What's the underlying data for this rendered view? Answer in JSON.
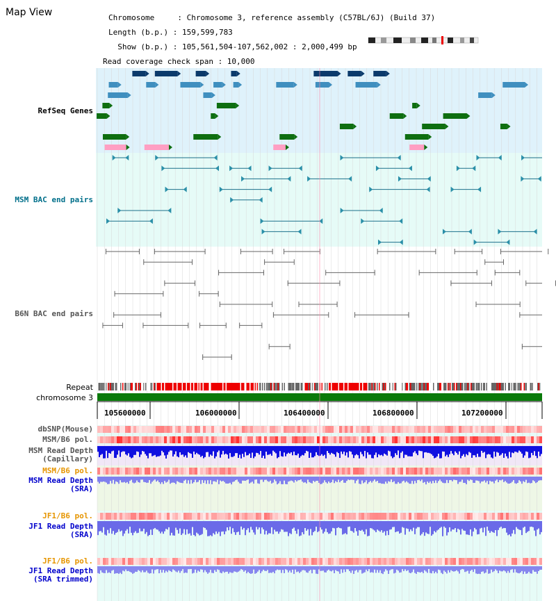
{
  "window": {
    "title": "Map View"
  },
  "info": {
    "chromosome_line": "Chromosome     : Chromosome 3, reference assembly (C57BL/6J) (Build 37)",
    "length_line": "Length (b.p.) : 159,599,783",
    "show_line": "  Show (b.p.) : 105,561,504-107,562,002 : 2,000,499 bp",
    "coverage_line": "Read coverage check span : 10,000"
  },
  "tracks": {
    "refseq": {
      "label": "RefSeq Genes",
      "color": "#0000cc"
    },
    "msm_bac": {
      "label": "MSM BAC end pairs",
      "color": "#006f8a"
    },
    "b6n_bac": {
      "label": "B6N BAC end pairs",
      "color": "#555555"
    },
    "repeat": {
      "label": "Repeat"
    },
    "chromosome": {
      "label": "chromosome 3"
    },
    "dbsnp": {
      "label": "dbSNP(Mouse)",
      "color": "#555555"
    },
    "msm_b6_pol_1": {
      "label": "MSM/B6 pol.",
      "color": "#555555"
    },
    "msm_depth_cap": {
      "label": "MSM Read Depth\n(Capillary)",
      "color": "#555555"
    },
    "msm_b6_pol_2": {
      "label": "MSM/B6 pol.",
      "color": "#e69500"
    },
    "msm_depth_sra": {
      "label": "MSM Read Depth\n(SRA)",
      "color": "#0000cc"
    },
    "jf1_b6_pol_1": {
      "label": "JF1/B6 pol.",
      "color": "#e69500"
    },
    "jf1_depth_sra": {
      "label": "JF1 Read Depth\n(SRA)",
      "color": "#0000cc"
    },
    "jf1_b6_pol_2": {
      "label": "JF1/B6 pol.",
      "color": "#e69500"
    },
    "jf1_depth_trim": {
      "label": "JF1 Read Depth\n(SRA trimmed)",
      "color": "#0000cc"
    }
  },
  "axis": {
    "ticks": [
      "105600000",
      "106000000",
      "106400000",
      "106800000",
      "107200000"
    ]
  },
  "colors": {
    "refseq_bg": "#dff2fb",
    "msm_bg": "#e6fbf7",
    "gene_navy": "#0b3a6b",
    "gene_blue": "#3f8fbf",
    "gene_green": "#0e6e10",
    "gene_pink": "#ff9fc3",
    "chrom_green": "#0a7a0a",
    "repeat_red": "#ee0000"
  }
}
